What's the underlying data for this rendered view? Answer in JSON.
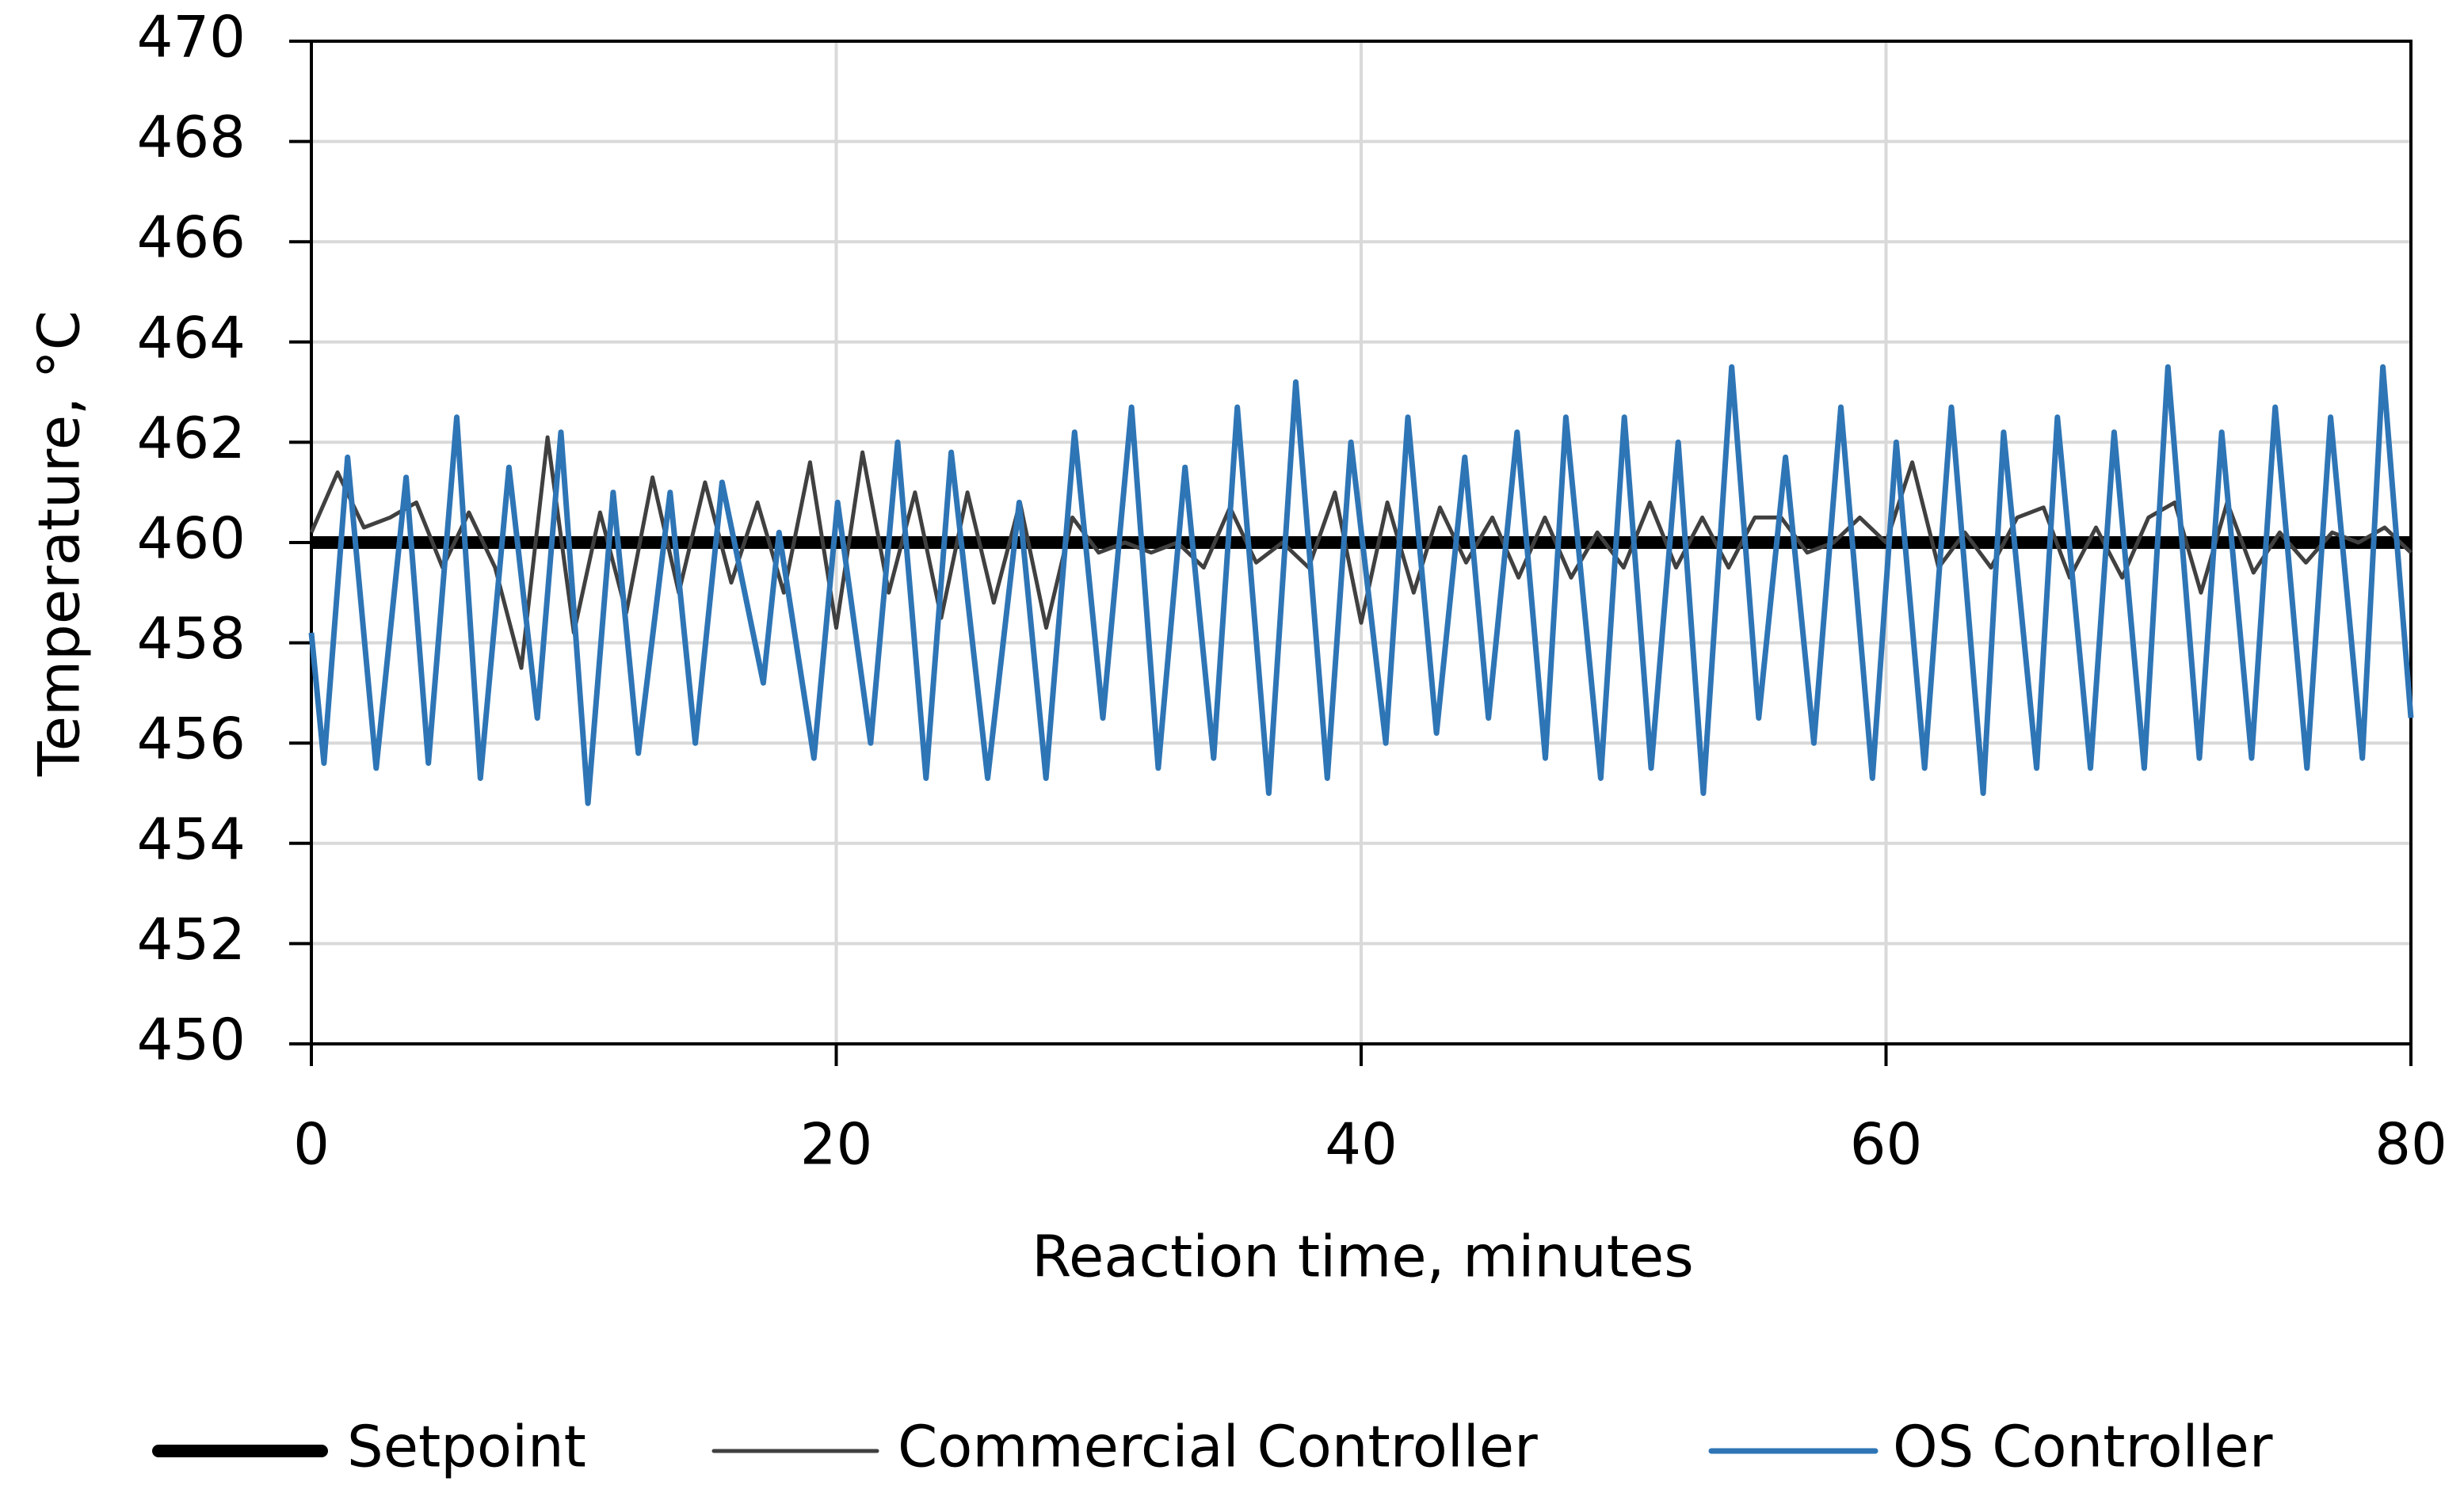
{
  "chart_data": {
    "type": "line",
    "xlabel": "Reaction time, minutes",
    "ylabel": "Temperature, °C",
    "xlim": [
      0,
      80
    ],
    "xticks": [
      0,
      20,
      40,
      60,
      80
    ],
    "ylim": [
      450,
      470
    ],
    "yticks": [
      450,
      452,
      454,
      456,
      458,
      460,
      462,
      464,
      466,
      468,
      470
    ],
    "grid": true,
    "legend": "bottom",
    "series": [
      {
        "name": "Setpoint",
        "color": "#000000",
        "x": [
          0,
          80
        ],
        "values": [
          460,
          460
        ]
      },
      {
        "name": "Commercial Controller",
        "color": "#404040",
        "x": [
          0,
          1,
          2,
          3,
          4,
          5,
          6,
          7,
          8,
          9,
          10,
          11,
          12,
          13,
          14,
          15,
          16,
          17,
          18,
          19,
          20,
          21,
          22,
          23,
          24,
          25,
          26,
          27,
          28,
          29,
          30,
          31,
          32,
          33,
          34,
          35,
          36,
          37,
          38,
          39,
          40,
          41,
          42,
          43,
          44,
          45,
          46,
          47,
          48,
          49,
          50,
          51,
          52,
          53,
          54,
          55,
          56,
          57,
          58,
          59,
          60,
          61,
          62,
          63,
          64,
          65,
          66,
          67,
          68,
          69,
          70,
          71,
          72,
          73,
          74,
          75,
          76,
          77,
          78,
          79,
          80
        ],
        "values": [
          460.2,
          461.4,
          460.3,
          460.5,
          460.8,
          459.5,
          460.6,
          459.5,
          457.5,
          462.1,
          458.2,
          460.6,
          458.6,
          461.3,
          459.0,
          461.2,
          459.2,
          460.8,
          459.0,
          461.6,
          458.3,
          461.8,
          459.0,
          461.0,
          458.5,
          461.0,
          458.8,
          460.8,
          458.3,
          460.5,
          459.8,
          460.0,
          459.8,
          460.0,
          459.5,
          460.7,
          459.6,
          460.0,
          459.5,
          461.0,
          458.4,
          460.8,
          459.0,
          460.7,
          459.6,
          460.5,
          459.3,
          460.5,
          459.3,
          460.2,
          459.5,
          460.8,
          459.5,
          460.5,
          459.5,
          460.5,
          460.5,
          459.8,
          460.0,
          460.5,
          460.0,
          461.6,
          459.5,
          460.2,
          459.5,
          460.5,
          460.7,
          459.3,
          460.3,
          459.3,
          460.5,
          460.8,
          459.0,
          460.8,
          459.4,
          460.2,
          459.6,
          460.2,
          460.0,
          460.3,
          459.8
        ]
      },
      {
        "name": "OS Controller",
        "color": "#2e75b6",
        "x": [
          0,
          0.48,
          1.38,
          2.47,
          3.61,
          4.46,
          5.54,
          6.44,
          7.53,
          8.61,
          9.51,
          10.54,
          11.5,
          12.46,
          13.67,
          14.63,
          15.65,
          17.22,
          17.82,
          19.15,
          20.05,
          21.31,
          22.34,
          23.42,
          24.38,
          25.77,
          26.97,
          27.99,
          29.08,
          30.16,
          31.25,
          32.27,
          33.29,
          34.38,
          35.28,
          36.48,
          37.51,
          38.71,
          39.61,
          40.94,
          41.78,
          42.87,
          43.95,
          44.85,
          45.94,
          47.02,
          47.8,
          49.13,
          50.03,
          51.05,
          52.08,
          53.04,
          54.12,
          55.15,
          56.17,
          57.25,
          58.28,
          59.48,
          60.39,
          61.47,
          62.49,
          63.7,
          64.48,
          65.74,
          66.53,
          67.79,
          68.69,
          69.84,
          70.74,
          71.94,
          72.79,
          73.93,
          74.83,
          76.04,
          76.94,
          78.15,
          78.93,
          80
        ],
        "values": [
          458.2,
          455.6,
          461.7,
          455.5,
          461.3,
          455.6,
          462.5,
          455.3,
          461.5,
          456.5,
          462.2,
          454.8,
          461.0,
          455.8,
          461.0,
          456.0,
          461.2,
          457.2,
          460.2,
          455.7,
          460.8,
          456.0,
          462.0,
          455.3,
          461.8,
          455.3,
          460.8,
          455.3,
          462.2,
          456.5,
          462.7,
          455.5,
          461.5,
          455.7,
          462.7,
          455.0,
          463.2,
          455.3,
          462.0,
          456.0,
          462.5,
          456.2,
          461.7,
          456.5,
          462.2,
          455.7,
          462.5,
          455.3,
          462.5,
          455.5,
          462.0,
          455.0,
          463.5,
          456.5,
          461.7,
          456.0,
          462.7,
          455.3,
          462.0,
          455.5,
          462.7,
          455.0,
          462.2,
          455.5,
          462.5,
          455.5,
          462.2,
          455.5,
          463.5,
          455.7,
          462.2,
          455.7,
          462.7,
          455.5,
          462.5,
          455.7,
          463.5,
          456.5
        ]
      }
    ]
  }
}
